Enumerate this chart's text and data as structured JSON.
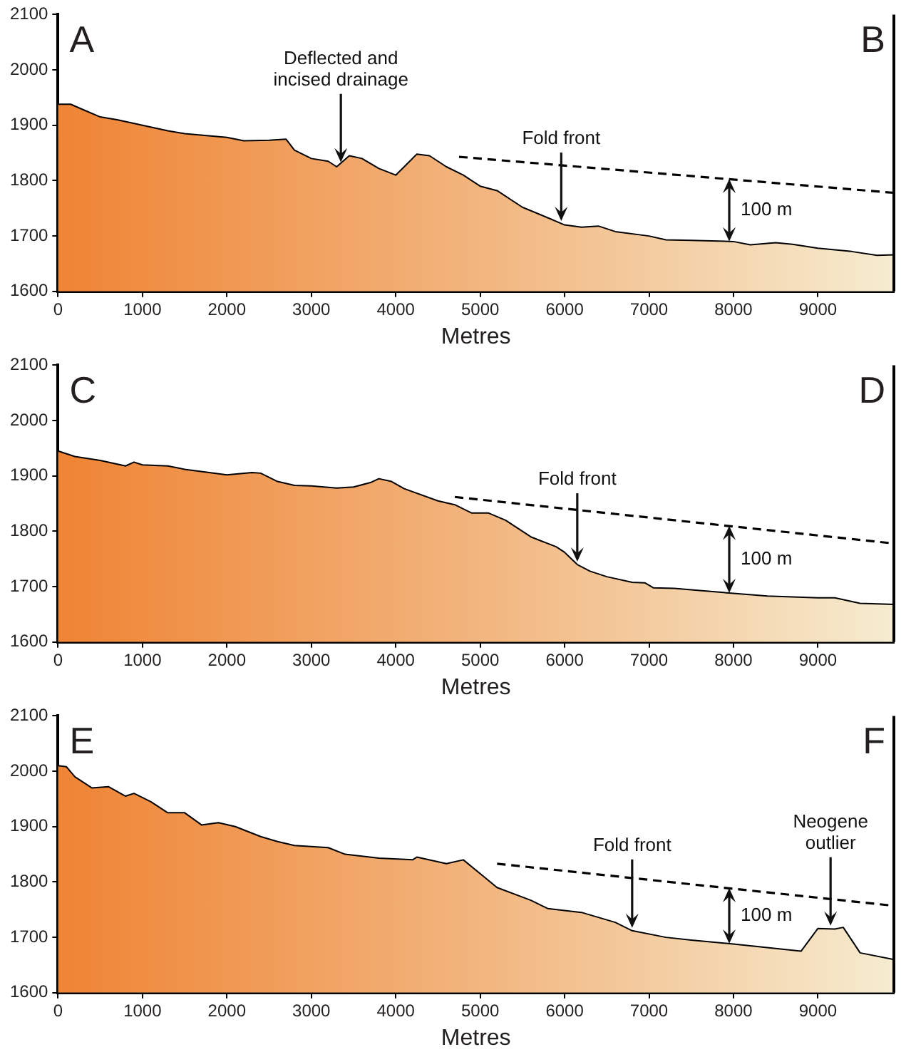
{
  "chart_data": [
    {
      "type": "area",
      "xlabel": "Metres",
      "marker": "none",
      "grid": false,
      "legend": false,
      "xlim": [
        0,
        9900
      ],
      "xticks": [
        0,
        1000,
        2000,
        3000,
        4000,
        5000,
        6000,
        7000,
        8000,
        9000
      ],
      "ylim": [
        1600,
        2100
      ],
      "yticks": [
        1600,
        1700,
        1800,
        1900,
        2000,
        2100
      ],
      "annotations": [
        "A",
        "B",
        {
          "text": "Deflected and\nincised drainage",
          "x": 3350,
          "y": 1828
        },
        {
          "text": "Fold front",
          "x": 5960,
          "y": 1722
        },
        {
          "text": "100 m",
          "x": 7950,
          "y": 1803
        }
      ],
      "x": [
        0,
        150,
        300,
        500,
        700,
        1000,
        1300,
        1500,
        2000,
        2200,
        2500,
        2700,
        2800,
        3000,
        3200,
        3300,
        3450,
        3600,
        3800,
        4000,
        4100,
        4250,
        4400,
        4600,
        4800,
        5000,
        5200,
        5500,
        5800,
        6000,
        6200,
        6400,
        6600,
        7000,
        7200,
        7500,
        8000,
        8200,
        8500,
        8700,
        9000,
        9400,
        9700,
        9900
      ],
      "series": [
        {
          "color": "#ef8434",
          "values": [
            1938,
            1938,
            1928,
            1915,
            1910,
            1900,
            1890,
            1885,
            1878,
            1872,
            1873,
            1875,
            1855,
            1840,
            1835,
            1825,
            1845,
            1840,
            1822,
            1810,
            1825,
            1848,
            1845,
            1825,
            1810,
            1790,
            1782,
            1752,
            1733,
            1720,
            1716,
            1718,
            1708,
            1700,
            1693,
            1692,
            1690,
            1684,
            1688,
            1685,
            1678,
            1672,
            1665,
            1666
          ]
        },
        {
          "type": "line",
          "color": "#000000",
          "line_style": "dashed",
          "x": [
            4750,
            9900
          ],
          "values": [
            1843,
            1778
          ]
        }
      ]
    },
    {
      "type": "area",
      "xlabel": "Metres",
      "marker": "none",
      "grid": false,
      "legend": false,
      "xlim": [
        0,
        9900
      ],
      "xticks": [
        0,
        1000,
        2000,
        3000,
        4000,
        5000,
        6000,
        7000,
        8000,
        9000
      ],
      "ylim": [
        1600,
        2100
      ],
      "yticks": [
        1600,
        1700,
        1800,
        1900,
        2000,
        2100
      ],
      "annotations": [
        "C",
        "D",
        {
          "text": "Fold front",
          "x": 6150,
          "y": 1740
        },
        {
          "text": "100 m",
          "x": 7950,
          "y": 1810
        }
      ],
      "x": [
        0,
        200,
        500,
        800,
        900,
        1000,
        1300,
        1500,
        2000,
        2300,
        2400,
        2600,
        2800,
        3000,
        3300,
        3500,
        3700,
        3800,
        3950,
        4100,
        4500,
        4700,
        4900,
        5100,
        5300,
        5600,
        5900,
        6000,
        6150,
        6300,
        6500,
        6800,
        6950,
        7050,
        7300,
        7600,
        8000,
        8400,
        9000,
        9200,
        9500,
        9900
      ],
      "series": [
        {
          "color": "#ef8434",
          "values": [
            1945,
            1935,
            1928,
            1918,
            1925,
            1920,
            1918,
            1912,
            1902,
            1906,
            1905,
            1890,
            1883,
            1882,
            1878,
            1880,
            1888,
            1895,
            1890,
            1877,
            1855,
            1848,
            1833,
            1833,
            1820,
            1790,
            1772,
            1762,
            1740,
            1728,
            1718,
            1708,
            1707,
            1698,
            1697,
            1693,
            1688,
            1683,
            1680,
            1680,
            1670,
            1668
          ]
        },
        {
          "type": "line",
          "color": "#000000",
          "line_style": "dashed",
          "x": [
            4700,
            9900
          ],
          "values": [
            1862,
            1778
          ]
        }
      ]
    },
    {
      "type": "area",
      "xlabel": "Metres",
      "marker": "none",
      "grid": false,
      "legend": false,
      "xlim": [
        0,
        9900
      ],
      "xticks": [
        0,
        1000,
        2000,
        3000,
        4000,
        5000,
        6000,
        7000,
        8000,
        9000
      ],
      "ylim": [
        1600,
        2100
      ],
      "yticks": [
        1600,
        1700,
        1800,
        1900,
        2000,
        2100
      ],
      "annotations": [
        "E",
        "F",
        {
          "text": "Fold front",
          "x": 6800,
          "y": 1712
        },
        {
          "text": "100 m",
          "x": 7950,
          "y": 1789
        },
        {
          "text": "Neogene\noutlier",
          "x": 9150,
          "y": 1716
        }
      ],
      "x": [
        0,
        100,
        200,
        400,
        600,
        800,
        900,
        1100,
        1300,
        1500,
        1700,
        1900,
        2100,
        2400,
        2600,
        2800,
        3200,
        3400,
        3800,
        4200,
        4250,
        4600,
        4800,
        5000,
        5200,
        5600,
        5800,
        6200,
        6600,
        6800,
        7200,
        7500,
        8000,
        8500,
        8800,
        9000,
        9200,
        9300,
        9500,
        9900
      ],
      "series": [
        {
          "color": "#ef8434",
          "values": [
            2010,
            2008,
            1990,
            1970,
            1972,
            1955,
            1960,
            1945,
            1925,
            1925,
            1903,
            1907,
            1900,
            1882,
            1873,
            1866,
            1862,
            1850,
            1843,
            1840,
            1845,
            1833,
            1840,
            1815,
            1790,
            1767,
            1752,
            1745,
            1727,
            1712,
            1700,
            1695,
            1688,
            1680,
            1675,
            1716,
            1715,
            1718,
            1672,
            1660
          ]
        },
        {
          "type": "line",
          "color": "#000000",
          "line_style": "dashed",
          "x": [
            5200,
            9900
          ],
          "values": [
            1833,
            1757
          ]
        }
      ]
    }
  ]
}
